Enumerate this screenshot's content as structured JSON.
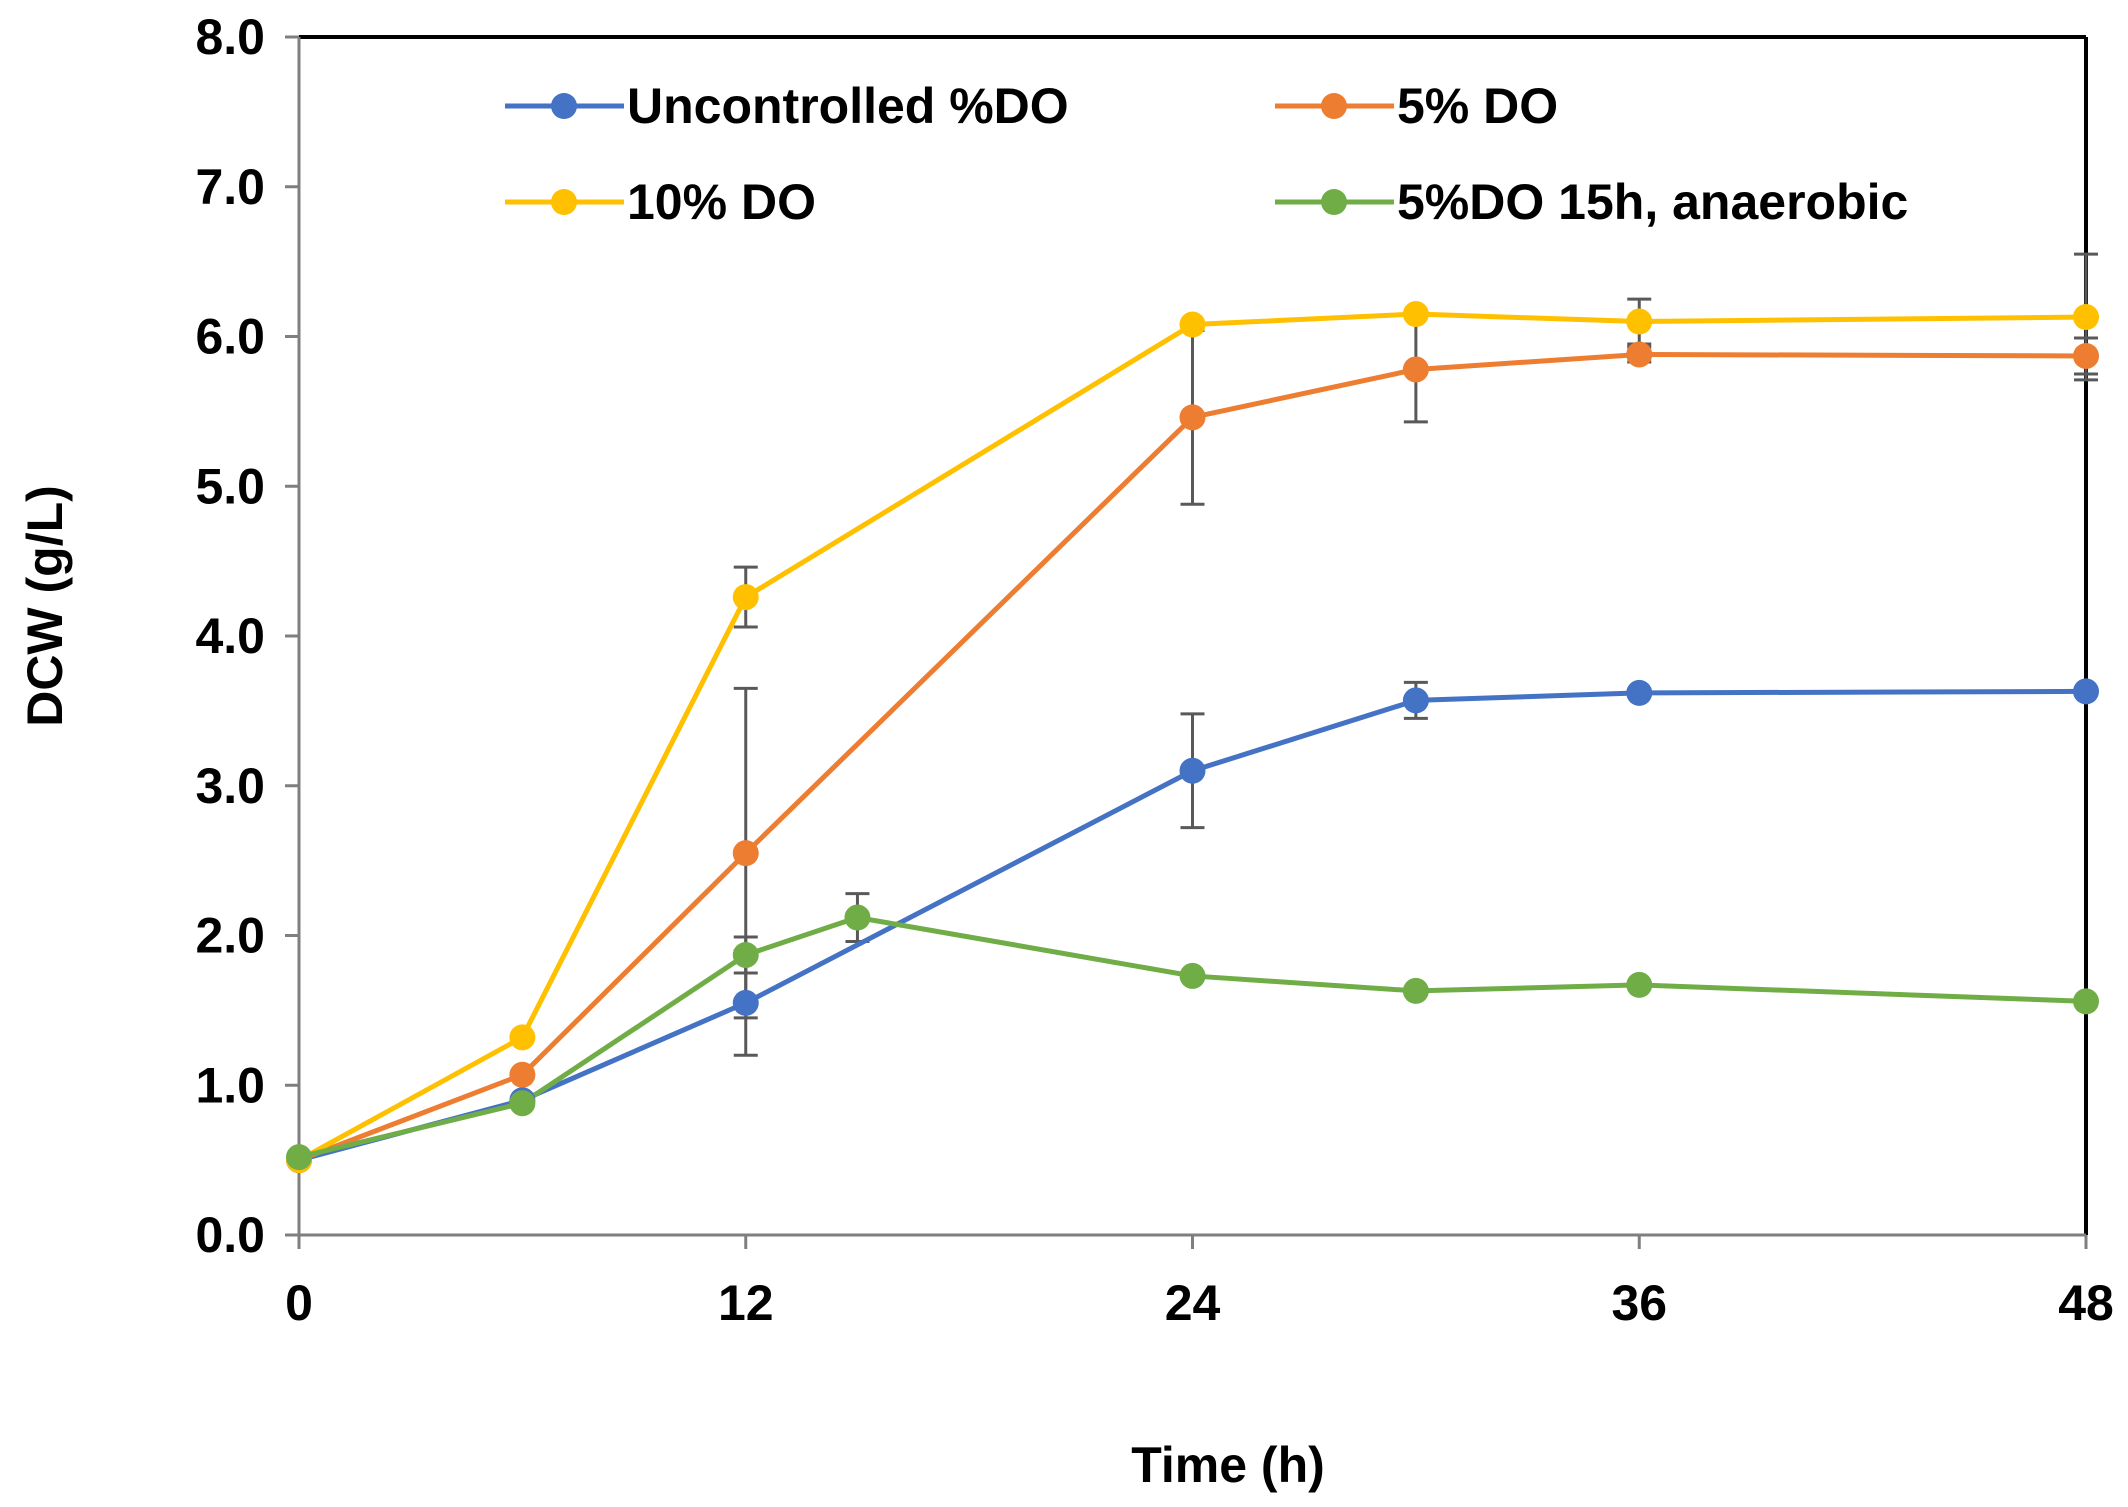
{
  "chart_data": {
    "type": "line",
    "title": "",
    "xlabel": "Time (h)",
    "ylabel": "DCW (g/L)",
    "xlim": [
      0,
      48
    ],
    "ylim": [
      0,
      8
    ],
    "xticks": [
      0,
      12,
      24,
      36,
      48
    ],
    "xtick_labels": [
      "0",
      "12",
      "24",
      "36",
      "48"
    ],
    "yticks": [
      0,
      1,
      2,
      3,
      4,
      5,
      6,
      7,
      8
    ],
    "ytick_labels": [
      "0.0",
      "1.0",
      "2.0",
      "3.0",
      "4.0",
      "5.0",
      "6.0",
      "7.0",
      "8.0"
    ],
    "grid": false,
    "legend_position": "top",
    "series": [
      {
        "name": "Uncontrolled %DO",
        "color": "#4472C4",
        "x": [
          0,
          6,
          12,
          24,
          30,
          36,
          48
        ],
        "y": [
          0.5,
          0.9,
          1.55,
          3.1,
          3.57,
          3.62,
          3.63
        ],
        "err": [
          0,
          0,
          0.35,
          0.38,
          0.12,
          0,
          0
        ]
      },
      {
        "name": "5% DO",
        "color": "#ED7D31",
        "x": [
          0,
          6,
          12,
          24,
          30,
          36,
          48
        ],
        "y": [
          0.5,
          1.07,
          2.55,
          5.46,
          5.78,
          5.88,
          5.87
        ],
        "err": [
          0,
          0,
          1.1,
          0.58,
          0.35,
          0.05,
          0.12
        ]
      },
      {
        "name": "10% DO",
        "color": "#FFC000",
        "x": [
          0,
          6,
          12,
          24,
          30,
          36,
          48
        ],
        "y": [
          0.5,
          1.32,
          4.26,
          6.08,
          6.15,
          6.1,
          6.13
        ],
        "err": [
          0,
          0,
          0.2,
          0,
          0,
          0.15,
          0.42
        ]
      },
      {
        "name": "5%DO 15h, anaerobic",
        "color": "#70AD47",
        "x": [
          0,
          6,
          12,
          15,
          24,
          30,
          36,
          48
        ],
        "y": [
          0.52,
          0.88,
          1.87,
          2.12,
          1.73,
          1.63,
          1.67,
          1.56
        ],
        "err": [
          0,
          0,
          0.12,
          0.16,
          0,
          0,
          0,
          0
        ]
      }
    ]
  }
}
